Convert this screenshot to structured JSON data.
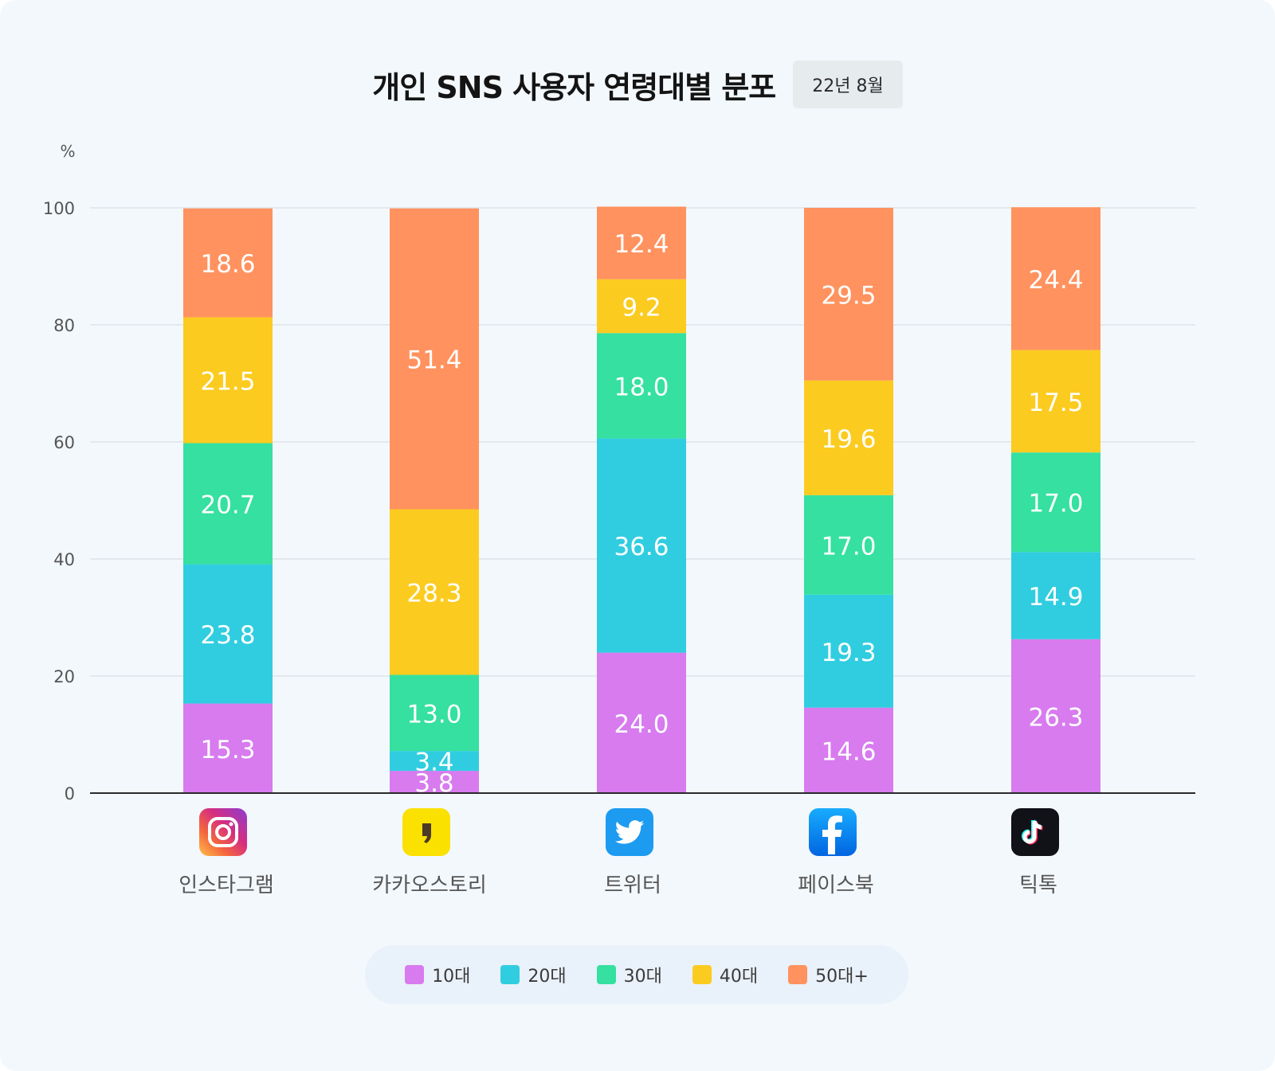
{
  "title": "개인 SNS 사용자 연령대별 분포",
  "date_badge": "22년 8월",
  "chart_data": {
    "type": "bar",
    "stacked": true,
    "title": "개인 SNS 사용자 연령대별 분포",
    "ylabel": "%",
    "ylim": [
      0,
      100
    ],
    "yticks": [
      "0",
      "20",
      "40",
      "60",
      "80",
      "100"
    ],
    "categories": [
      "인스타그램",
      "카카오스토리",
      "트위터",
      "페이스북",
      "틱톡"
    ],
    "series": [
      {
        "name": "10대",
        "color": "#d77bef",
        "values": [
          15.3,
          3.8,
          24.0,
          14.6,
          26.3
        ],
        "labels": [
          "15.3",
          "3.8",
          "24.0",
          "14.6",
          "26.3"
        ]
      },
      {
        "name": "20대",
        "color": "#30cde0",
        "values": [
          23.8,
          3.4,
          36.6,
          19.3,
          14.9
        ],
        "labels": [
          "23.8",
          "3.4",
          "36.6",
          "19.3",
          "14.9"
        ]
      },
      {
        "name": "30대",
        "color": "#35e0a0",
        "values": [
          20.7,
          13.0,
          18.0,
          17.0,
          17.0
        ],
        "labels": [
          "20.7",
          "13.0",
          "18.0",
          "17.0",
          "17.0"
        ]
      },
      {
        "name": "40대",
        "color": "#fbcb20",
        "values": [
          21.5,
          28.3,
          9.2,
          19.6,
          17.5
        ],
        "labels": [
          "21.5",
          "28.3",
          "9.2",
          "19.6",
          "17.5"
        ]
      },
      {
        "name": "50대+",
        "color": "#ff925e",
        "values": [
          18.6,
          51.4,
          12.4,
          29.5,
          24.4
        ],
        "labels": [
          "18.6",
          "51.4",
          "12.4",
          "29.5",
          "24.4"
        ]
      }
    ],
    "grid": true,
    "legend": "bottom"
  },
  "icons": [
    "instagram-icon",
    "kakaostory-icon",
    "twitter-icon",
    "facebook-icon",
    "tiktok-icon"
  ],
  "legend_items": [
    "10대",
    "20대",
    "30대",
    "40대",
    "50대+"
  ]
}
